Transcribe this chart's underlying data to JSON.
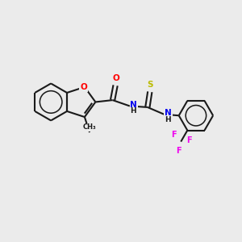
{
  "bg_color": "#ebebeb",
  "bond_color": "#1a1a1a",
  "atom_colors": {
    "O": "#ff0000",
    "N": "#0000ee",
    "S": "#bbbb00",
    "F": "#ee00ee",
    "C": "#1a1a1a",
    "H": "#1a1a1a"
  },
  "figsize": [
    3.0,
    3.0
  ],
  "dpi": 100,
  "lw": 1.5
}
